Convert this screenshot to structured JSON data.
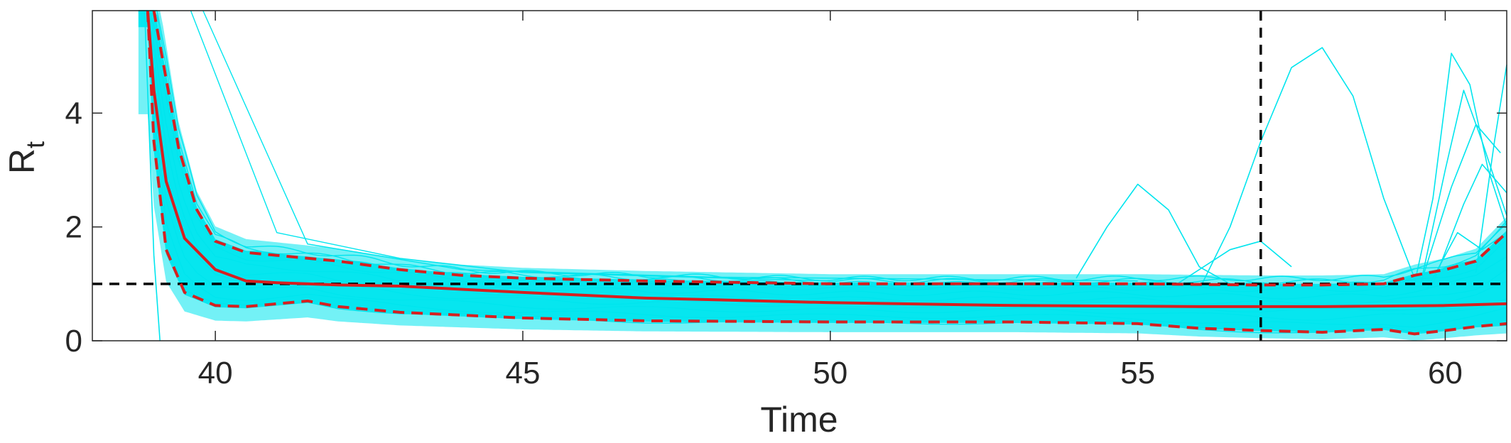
{
  "chart_data": {
    "type": "line",
    "xlabel": "Time",
    "ylabel": {
      "main": "R",
      "subscript": "t"
    },
    "xlim": [
      38,
      61
    ],
    "ylim": [
      0,
      5.8
    ],
    "xticks": [
      40,
      45,
      50,
      55,
      60
    ],
    "yticks": [
      0,
      2,
      4
    ],
    "x_tick_labels": [
      "40",
      "45",
      "50",
      "55",
      "60"
    ],
    "y_tick_labels": [
      "0",
      "2",
      "4"
    ],
    "grid": false,
    "legend": "none",
    "colors": {
      "samples": "#00e5ee",
      "median": "#d62020",
      "bounds": "#d62020",
      "reference": "#000000",
      "axis": "#262626"
    },
    "reference_lines": {
      "horizontal_y": 1,
      "vertical_x": 57
    },
    "series": [
      {
        "role": "median",
        "style": "solid",
        "x": [
          38.9,
          39.0,
          39.2,
          39.5,
          40.0,
          40.5,
          41.0,
          42.0,
          43.0,
          45.0,
          47.0,
          50.0,
          53.0,
          56.0,
          58.0,
          60.0,
          61.0
        ],
        "y": [
          5.8,
          4.4,
          2.8,
          1.8,
          1.25,
          1.05,
          1.02,
          0.98,
          0.96,
          0.85,
          0.75,
          0.67,
          0.62,
          0.6,
          0.6,
          0.62,
          0.65
        ]
      },
      {
        "role": "upper-bound",
        "style": "dashed",
        "x": [
          39.0,
          39.1,
          39.4,
          39.7,
          40.0,
          40.5,
          41.0,
          42.0,
          43.0,
          44.0,
          45.0,
          47.0,
          50.0,
          53.0,
          55.0,
          57.0,
          58.0,
          59.0,
          59.5,
          60.0,
          60.5,
          61.0
        ],
        "y": [
          5.8,
          5.2,
          3.4,
          2.3,
          1.75,
          1.55,
          1.5,
          1.4,
          1.25,
          1.15,
          1.1,
          1.05,
          1.0,
          1.0,
          1.0,
          0.98,
          0.98,
          1.0,
          1.15,
          1.25,
          1.4,
          1.9
        ]
      },
      {
        "role": "lower-bound",
        "style": "dashed",
        "x": [
          38.9,
          39.0,
          39.2,
          39.5,
          40.0,
          40.5,
          41.0,
          41.5,
          42.0,
          43.0,
          45.0,
          47.0,
          50.0,
          53.0,
          55.0,
          56.0,
          57.0,
          58.0,
          59.0,
          59.5,
          60.0,
          60.5,
          61.0
        ],
        "y": [
          5.8,
          3.5,
          1.6,
          0.85,
          0.62,
          0.6,
          0.65,
          0.7,
          0.6,
          0.5,
          0.4,
          0.35,
          0.33,
          0.33,
          0.3,
          0.22,
          0.18,
          0.15,
          0.2,
          0.12,
          0.18,
          0.25,
          0.3
        ]
      },
      {
        "role": "sample-peak",
        "style": "thin",
        "x": [
          54.0,
          54.5,
          55.0,
          55.5,
          56.0,
          56.5
        ],
        "y": [
          1.1,
          2.0,
          2.75,
          2.3,
          1.3,
          1.0
        ]
      },
      {
        "role": "sample-peak",
        "style": "thin",
        "x": [
          56.0,
          56.5,
          57.0,
          57.5,
          58.0,
          58.5,
          59.0,
          59.5
        ],
        "y": [
          0.9,
          2.0,
          3.5,
          4.8,
          5.15,
          4.3,
          2.5,
          1.1
        ]
      },
      {
        "role": "sample-peak",
        "style": "thin",
        "x": [
          55.5,
          56.5,
          57.0,
          57.5
        ],
        "y": [
          0.9,
          1.6,
          1.75,
          1.3
        ]
      },
      {
        "role": "sample-peak",
        "style": "thin",
        "x": [
          59.5,
          59.8,
          60.1,
          60.4,
          60.7,
          61.0
        ],
        "y": [
          1.0,
          2.5,
          5.05,
          4.5,
          3.0,
          2.0
        ]
      },
      {
        "role": "sample-peak",
        "style": "thin",
        "x": [
          59.6,
          60.0,
          60.3,
          60.6,
          61.0
        ],
        "y": [
          1.0,
          3.0,
          4.4,
          3.5,
          2.2
        ]
      },
      {
        "role": "sample-peak",
        "style": "thin",
        "x": [
          59.6,
          60.1,
          60.5,
          60.9
        ],
        "y": [
          1.0,
          2.7,
          3.8,
          3.3
        ]
      },
      {
        "role": "sample-peak",
        "style": "thin",
        "x": [
          59.8,
          60.3,
          60.6,
          61.0
        ],
        "y": [
          1.0,
          2.4,
          3.1,
          2.6
        ]
      },
      {
        "role": "sample-peak",
        "style": "thin",
        "x": [
          60.5,
          60.8,
          61.0
        ],
        "y": [
          1.2,
          3.5,
          4.85
        ]
      },
      {
        "role": "sample-peak",
        "style": "thin",
        "x": [
          59.7,
          60.2,
          60.6,
          61.0
        ],
        "y": [
          0.9,
          1.9,
          1.6,
          1.9
        ]
      }
    ]
  }
}
